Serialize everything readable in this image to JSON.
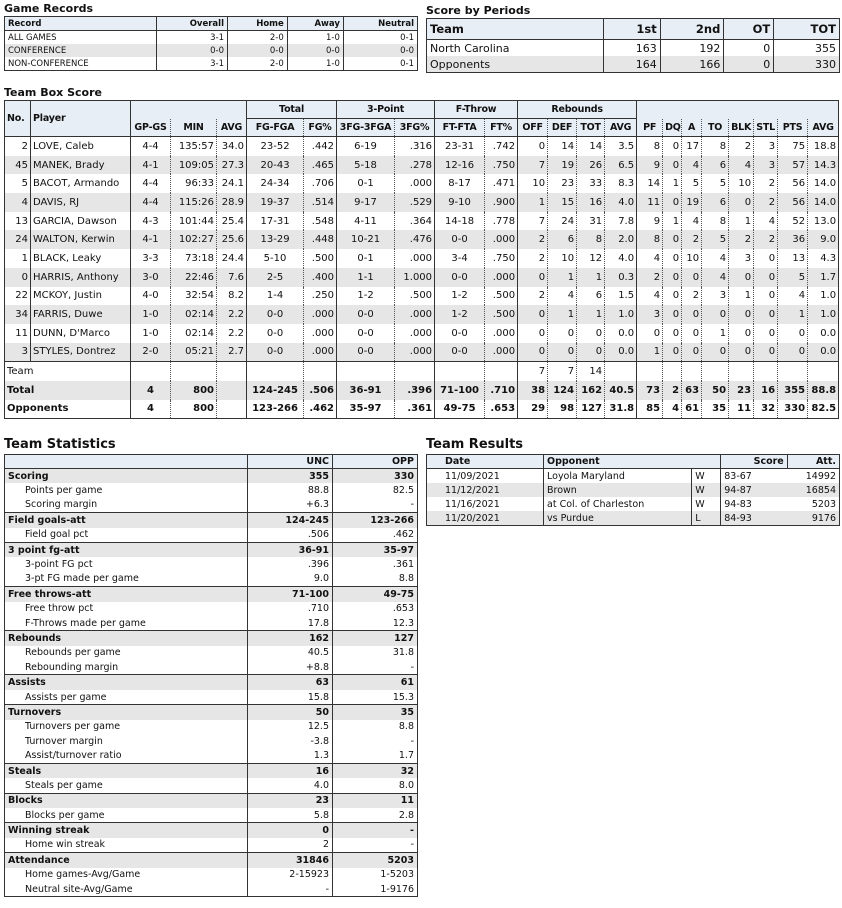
{
  "game_records": {
    "title": "Game Records",
    "headers": [
      "Record",
      "Overall",
      "Home",
      "Away",
      "Neutral"
    ],
    "rows": [
      [
        "ALL GAMES",
        "3-1",
        "2-0",
        "1-0",
        "0-1"
      ],
      [
        "CONFERENCE",
        "0-0",
        "0-0",
        "0-0",
        "0-0"
      ],
      [
        "NON-CONFERENCE",
        "3-1",
        "2-0",
        "1-0",
        "0-1"
      ]
    ]
  },
  "score_by_periods": {
    "title": "Score by Periods",
    "headers": [
      "Team",
      "1st",
      "2nd",
      "OT",
      "TOT"
    ],
    "rows": [
      [
        "North Carolina",
        "163",
        "192",
        "0",
        "355"
      ],
      [
        "Opponents",
        "164",
        "166",
        "0",
        "330"
      ]
    ]
  },
  "box_score": {
    "title": "Team Box Score",
    "groups": [
      "Total",
      "3-Point",
      "F-Throw",
      "Rebounds"
    ],
    "headers": [
      "No.",
      "Player",
      "GP-GS",
      "MIN",
      "AVG",
      "FG-FGA",
      "FG%",
      "3FG-3FGA",
      "3FG%",
      "FT-FTA",
      "FT%",
      "OFF",
      "DEF",
      "TOT",
      "AVG",
      "PF",
      "DQ",
      "A",
      "TO",
      "BLK",
      "STL",
      "PTS",
      "AVG"
    ],
    "players": [
      [
        "2",
        "LOVE, Caleb",
        "4-4",
        "135:57",
        "34.0",
        "23-52",
        ".442",
        "6-19",
        ".316",
        "23-31",
        ".742",
        "0",
        "14",
        "14",
        "3.5",
        "8",
        "0",
        "17",
        "8",
        "2",
        "3",
        "75",
        "18.8"
      ],
      [
        "45",
        "MANEK, Brady",
        "4-1",
        "109:05",
        "27.3",
        "20-43",
        ".465",
        "5-18",
        ".278",
        "12-16",
        ".750",
        "7",
        "19",
        "26",
        "6.5",
        "9",
        "0",
        "4",
        "6",
        "4",
        "3",
        "57",
        "14.3"
      ],
      [
        "5",
        "BACOT, Armando",
        "4-4",
        "96:33",
        "24.1",
        "24-34",
        ".706",
        "0-1",
        ".000",
        "8-17",
        ".471",
        "10",
        "23",
        "33",
        "8.3",
        "14",
        "1",
        "5",
        "5",
        "10",
        "2",
        "56",
        "14.0"
      ],
      [
        "4",
        "DAVIS, RJ",
        "4-4",
        "115:26",
        "28.9",
        "19-37",
        ".514",
        "9-17",
        ".529",
        "9-10",
        ".900",
        "1",
        "15",
        "16",
        "4.0",
        "11",
        "0",
        "19",
        "6",
        "0",
        "2",
        "56",
        "14.0"
      ],
      [
        "13",
        "GARCIA, Dawson",
        "4-3",
        "101:44",
        "25.4",
        "17-31",
        ".548",
        "4-11",
        ".364",
        "14-18",
        ".778",
        "7",
        "24",
        "31",
        "7.8",
        "9",
        "1",
        "4",
        "8",
        "1",
        "4",
        "52",
        "13.0"
      ],
      [
        "24",
        "WALTON, Kerwin",
        "4-1",
        "102:27",
        "25.6",
        "13-29",
        ".448",
        "10-21",
        ".476",
        "0-0",
        ".000",
        "2",
        "6",
        "8",
        "2.0",
        "8",
        "0",
        "2",
        "5",
        "2",
        "2",
        "36",
        "9.0"
      ],
      [
        "1",
        "BLACK, Leaky",
        "3-3",
        "73:18",
        "24.4",
        "5-10",
        ".500",
        "0-1",
        ".000",
        "3-4",
        ".750",
        "2",
        "10",
        "12",
        "4.0",
        "4",
        "0",
        "10",
        "4",
        "3",
        "0",
        "13",
        "4.3"
      ],
      [
        "0",
        "HARRIS, Anthony",
        "3-0",
        "22:46",
        "7.6",
        "2-5",
        ".400",
        "1-1",
        "1.000",
        "0-0",
        ".000",
        "0",
        "1",
        "1",
        "0.3",
        "2",
        "0",
        "0",
        "4",
        "0",
        "0",
        "5",
        "1.7"
      ],
      [
        "22",
        "MCKOY, Justin",
        "4-0",
        "32:54",
        "8.2",
        "1-4",
        ".250",
        "1-2",
        ".500",
        "1-2",
        ".500",
        "2",
        "4",
        "6",
        "1.5",
        "4",
        "0",
        "2",
        "3",
        "1",
        "0",
        "4",
        "1.0"
      ],
      [
        "34",
        "FARRIS, Duwe",
        "1-0",
        "02:14",
        "2.2",
        "0-0",
        ".000",
        "0-0",
        ".000",
        "1-2",
        ".500",
        "0",
        "1",
        "1",
        "1.0",
        "3",
        "0",
        "0",
        "0",
        "0",
        "0",
        "1",
        "1.0"
      ],
      [
        "11",
        "DUNN, D'Marco",
        "1-0",
        "02:14",
        "2.2",
        "0-0",
        ".000",
        "0-0",
        ".000",
        "0-0",
        ".000",
        "0",
        "0",
        "0",
        "0.0",
        "0",
        "0",
        "0",
        "1",
        "0",
        "0",
        "0",
        "0.0"
      ],
      [
        "3",
        "STYLES, Dontrez",
        "2-0",
        "05:21",
        "2.7",
        "0-0",
        ".000",
        "0-0",
        ".000",
        "0-0",
        ".000",
        "0",
        "0",
        "0",
        "0.0",
        "1",
        "0",
        "0",
        "0",
        "0",
        "0",
        "0",
        "0.0"
      ]
    ],
    "team_row": [
      "Team",
      "",
      "",
      "",
      "",
      "",
      "",
      "",
      "",
      "",
      "7",
      "7",
      "14",
      "",
      "",
      "",
      "",
      "",
      "",
      "",
      "",
      ""
    ],
    "totals": [
      [
        "Total",
        "4",
        "800",
        "",
        "124-245",
        ".506",
        "36-91",
        ".396",
        "71-100",
        ".710",
        "38",
        "124",
        "162",
        "40.5",
        "73",
        "2",
        "63",
        "50",
        "23",
        "16",
        "355",
        "88.8"
      ],
      [
        "Opponents",
        "4",
        "800",
        "",
        "123-266",
        ".462",
        "35-97",
        ".361",
        "49-75",
        ".653",
        "29",
        "98",
        "127",
        "31.8",
        "85",
        "4",
        "61",
        "35",
        "11",
        "32",
        "330",
        "82.5"
      ]
    ]
  },
  "team_stats": {
    "title": "Team Statistics",
    "headers": [
      "",
      "UNC",
      "OPP"
    ],
    "groups": [
      {
        "row": [
          "Scoring",
          "355",
          "330"
        ],
        "sub": [
          [
            "Points per game",
            "88.8",
            "82.5"
          ],
          [
            "Scoring margin",
            "+6.3",
            "-"
          ]
        ]
      },
      {
        "row": [
          "Field goals-att",
          "124-245",
          "123-266"
        ],
        "sub": [
          [
            "Field goal pct",
            ".506",
            ".462"
          ]
        ]
      },
      {
        "row": [
          "3 point fg-att",
          "36-91",
          "35-97"
        ],
        "sub": [
          [
            "3-point FG pct",
            ".396",
            ".361"
          ],
          [
            "3-pt FG made per game",
            "9.0",
            "8.8"
          ]
        ]
      },
      {
        "row": [
          "Free throws-att",
          "71-100",
          "49-75"
        ],
        "sub": [
          [
            "Free throw pct",
            ".710",
            ".653"
          ],
          [
            "F-Throws made per game",
            "17.8",
            "12.3"
          ]
        ]
      },
      {
        "row": [
          "Rebounds",
          "162",
          "127"
        ],
        "sub": [
          [
            "Rebounds per game",
            "40.5",
            "31.8"
          ],
          [
            "Rebounding margin",
            "+8.8",
            "-"
          ]
        ]
      },
      {
        "row": [
          "Assists",
          "63",
          "61"
        ],
        "sub": [
          [
            "Assists per game",
            "15.8",
            "15.3"
          ]
        ]
      },
      {
        "row": [
          "Turnovers",
          "50",
          "35"
        ],
        "sub": [
          [
            "Turnovers per game",
            "12.5",
            "8.8"
          ],
          [
            "Turnover margin",
            "-3.8",
            "-"
          ],
          [
            "Assist/turnover ratio",
            "1.3",
            "1.7"
          ]
        ]
      },
      {
        "row": [
          "Steals",
          "16",
          "32"
        ],
        "sub": [
          [
            "Steals per game",
            "4.0",
            "8.0"
          ]
        ]
      },
      {
        "row": [
          "Blocks",
          "23",
          "11"
        ],
        "sub": [
          [
            "Blocks per game",
            "5.8",
            "2.8"
          ]
        ]
      },
      {
        "row": [
          "Winning streak",
          "0",
          "-"
        ],
        "sub": [
          [
            "Home win streak",
            "2",
            "-"
          ]
        ]
      },
      {
        "row": [
          "Attendance",
          "31846",
          "5203"
        ],
        "sub": [
          [
            "Home games-Avg/Game",
            "2-15923",
            "1-5203"
          ],
          [
            "Neutral site-Avg/Game",
            "-",
            "1-9176"
          ]
        ]
      }
    ]
  },
  "team_results": {
    "title": "Team Results",
    "headers": [
      "Date",
      "Opponent",
      "Score",
      "Att."
    ],
    "rows": [
      [
        "11/09/2021",
        "Loyola Maryland",
        "W",
        "83-67",
        "14992"
      ],
      [
        "11/12/2021",
        "Brown",
        "W",
        "94-87",
        "16854"
      ],
      [
        "11/16/2021",
        "at Col. of Charleston",
        "W",
        "94-83",
        "5203"
      ],
      [
        "11/20/2021",
        "vs Purdue",
        "L",
        "84-93",
        "9176"
      ]
    ]
  }
}
